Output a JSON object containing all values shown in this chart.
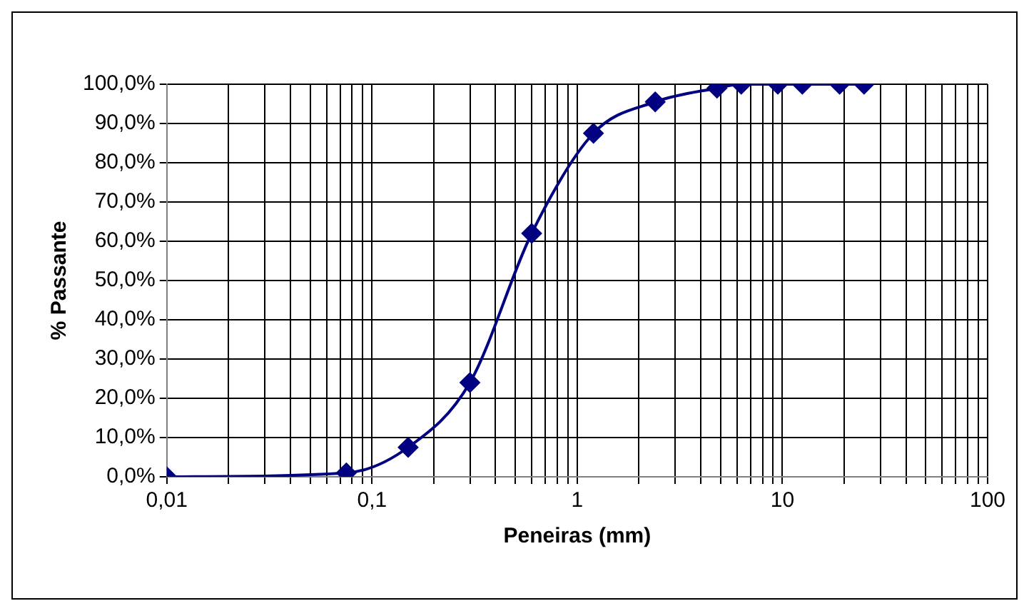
{
  "chart_data": {
    "type": "line",
    "xlabel": "Peneiras (mm)",
    "ylabel": "% Passante",
    "x": [
      0.01,
      0.075,
      0.15,
      0.3,
      0.6,
      1.2,
      2.4,
      4.8,
      6.3,
      9.5,
      12.5,
      19,
      25
    ],
    "series": [
      {
        "color": "#000080",
        "values": [
          0,
          1,
          7.5,
          24,
          62,
          87.5,
          95.5,
          99,
          100,
          100,
          100,
          100,
          100
        ]
      }
    ],
    "log": "x",
    "grid": true,
    "legend": false,
    "marker": "diamond",
    "line_style": "solid",
    "xlim": [
      0.01,
      100
    ],
    "xticks": [
      {
        "value": 0.01,
        "label": "0,01"
      },
      {
        "value": 0.02,
        "label": null
      },
      {
        "value": 0.03,
        "label": null
      },
      {
        "value": 0.04,
        "label": null
      },
      {
        "value": 0.05,
        "label": null
      },
      {
        "value": 0.06,
        "label": null
      },
      {
        "value": 0.07,
        "label": null
      },
      {
        "value": 0.08,
        "label": null
      },
      {
        "value": 0.09,
        "label": null
      },
      {
        "value": 0.1,
        "label": "0,1"
      },
      {
        "value": 0.2,
        "label": null
      },
      {
        "value": 0.3,
        "label": null
      },
      {
        "value": 0.4,
        "label": null
      },
      {
        "value": 0.5,
        "label": null
      },
      {
        "value": 0.6,
        "label": null
      },
      {
        "value": 0.7,
        "label": null
      },
      {
        "value": 0.8,
        "label": null
      },
      {
        "value": 0.9,
        "label": null
      },
      {
        "value": 1,
        "label": "1"
      },
      {
        "value": 2,
        "label": null
      },
      {
        "value": 3,
        "label": null
      },
      {
        "value": 4,
        "label": null
      },
      {
        "value": 5,
        "label": null
      },
      {
        "value": 6,
        "label": null
      },
      {
        "value": 7,
        "label": null
      },
      {
        "value": 8,
        "label": null
      },
      {
        "value": 9,
        "label": null
      },
      {
        "value": 10,
        "label": "10"
      },
      {
        "value": 20,
        "label": null
      },
      {
        "value": 30,
        "label": null
      },
      {
        "value": 40,
        "label": null
      },
      {
        "value": 50,
        "label": null
      },
      {
        "value": 60,
        "label": null
      },
      {
        "value": 70,
        "label": null
      },
      {
        "value": 80,
        "label": null
      },
      {
        "value": 90,
        "label": null
      },
      {
        "value": 100,
        "label": "100"
      }
    ],
    "ylim": [
      0,
      100
    ],
    "yticks": [
      {
        "value": 0,
        "label": "0,0%"
      },
      {
        "value": 10,
        "label": "10,0%"
      },
      {
        "value": 20,
        "label": "20,0%"
      },
      {
        "value": 30,
        "label": "30,0%"
      },
      {
        "value": 40,
        "label": "40,0%"
      },
      {
        "value": 50,
        "label": "50,0%"
      },
      {
        "value": 60,
        "label": "60,0%"
      },
      {
        "value": 70,
        "label": "70,0%"
      },
      {
        "value": 80,
        "label": "80,0%"
      },
      {
        "value": 90,
        "label": "90,0%"
      },
      {
        "value": 100,
        "label": "100,0%"
      }
    ]
  }
}
